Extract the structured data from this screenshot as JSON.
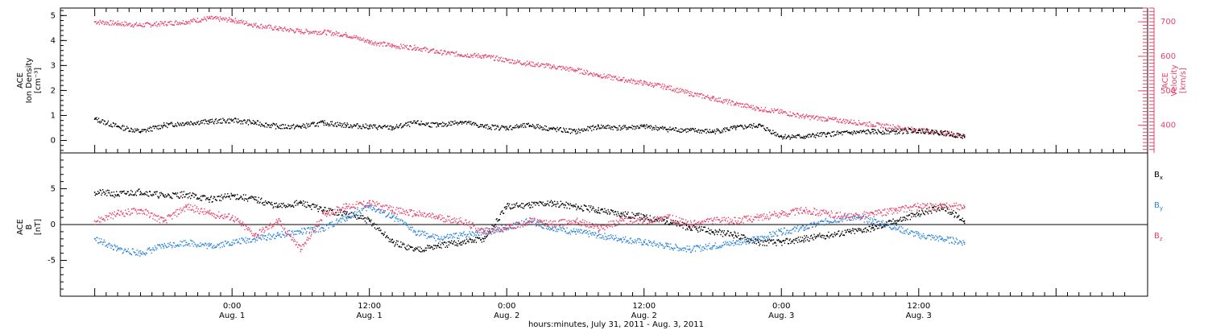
{
  "chart_data": [
    {
      "type": "scatter",
      "panel": "top",
      "xlabel": "hours:minutes, July 31, 2011 - Aug. 3, 2011",
      "left_axis": {
        "label_lines": [
          "ACE",
          "Ion Density",
          "[cm⁻³]"
        ],
        "ylim": [
          -0.5,
          5.3
        ],
        "ticks": [
          0,
          1,
          2,
          3,
          4,
          5
        ],
        "color": "#000000"
      },
      "right_axis": {
        "label_lines": [
          "ACE",
          "Velocity",
          "[km/s]"
        ],
        "ylim": [
          320,
          740
        ],
        "ticks": [
          400,
          500,
          600,
          700
        ],
        "color": "#e8426a"
      },
      "series": [
        {
          "color": "#000000",
          "axis": "left",
          "x_hours": [
            -12,
            -10,
            -8,
            -6,
            -4,
            -2,
            0,
            2,
            4,
            6,
            8,
            10,
            12,
            14,
            16,
            18,
            20,
            22,
            24,
            26,
            28,
            30,
            32,
            34,
            36,
            38,
            40,
            42,
            44,
            46,
            48,
            50,
            52,
            54,
            56,
            58,
            60,
            62,
            64
          ],
          "values": [
            0.85,
            0.55,
            0.35,
            0.6,
            0.7,
            0.75,
            0.8,
            0.7,
            0.55,
            0.55,
            0.7,
            0.6,
            0.55,
            0.5,
            0.7,
            0.6,
            0.75,
            0.55,
            0.5,
            0.6,
            0.45,
            0.35,
            0.55,
            0.5,
            0.55,
            0.45,
            0.4,
            0.35,
            0.5,
            0.6,
            0.15,
            0.15,
            0.25,
            0.3,
            0.35,
            0.35,
            0.4,
            0.3,
            0.15
          ]
        },
        {
          "color": "#e8426a",
          "axis": "right",
          "x_hours": [
            -12,
            -10,
            -8,
            -6,
            -4,
            -2,
            0,
            2,
            4,
            6,
            8,
            10,
            12,
            14,
            16,
            18,
            20,
            22,
            24,
            26,
            28,
            30,
            32,
            34,
            36,
            38,
            40,
            42,
            44,
            46,
            48,
            50,
            52,
            54,
            56,
            58,
            60,
            62,
            64
          ],
          "values": [
            700,
            695,
            690,
            695,
            700,
            710,
            705,
            690,
            680,
            672,
            670,
            662,
            642,
            630,
            625,
            612,
            605,
            600,
            588,
            578,
            570,
            560,
            545,
            533,
            522,
            510,
            492,
            478,
            462,
            448,
            438,
            425,
            418,
            410,
            402,
            394,
            385,
            378,
            368
          ]
        }
      ]
    },
    {
      "type": "scatter",
      "panel": "bottom",
      "left_axis": {
        "label_lines": [
          "ACE",
          "B",
          "[nT]"
        ],
        "ylim": [
          -10,
          10
        ],
        "ticks": [
          -5,
          0,
          5
        ]
      },
      "legend_position": "right",
      "series": [
        {
          "name": "B",
          "subscript": "x",
          "color": "#000000",
          "x_hours": [
            -12,
            -10,
            -8,
            -6,
            -4,
            -2,
            0,
            2,
            4,
            6,
            8,
            10,
            12,
            14,
            16,
            18,
            20,
            22,
            24,
            26,
            28,
            30,
            32,
            34,
            36,
            38,
            40,
            42,
            44,
            46,
            48,
            50,
            52,
            54,
            56,
            58,
            60,
            62,
            64
          ],
          "values": [
            4.5,
            4.2,
            4.6,
            4.0,
            4.2,
            3.5,
            4.0,
            3.5,
            2.5,
            3.0,
            2.0,
            1.5,
            0.5,
            -2.5,
            -3.5,
            -3.0,
            -2.5,
            -2.0,
            2.5,
            2.8,
            3.0,
            2.5,
            2.0,
            1.5,
            1.0,
            0.5,
            -0.5,
            -1.0,
            -1.5,
            -2.5,
            -2.5,
            -2.0,
            -1.5,
            -1.0,
            -0.5,
            0.5,
            1.5,
            2.5,
            0.5
          ]
        },
        {
          "name": "B",
          "subscript": "y",
          "color": "#2a84dc",
          "x_hours": [
            -12,
            -10,
            -8,
            -6,
            -4,
            -2,
            0,
            2,
            4,
            6,
            8,
            10,
            12,
            14,
            16,
            18,
            20,
            22,
            24,
            26,
            28,
            30,
            32,
            34,
            36,
            38,
            40,
            42,
            44,
            46,
            48,
            50,
            52,
            54,
            56,
            58,
            60,
            62,
            64
          ],
          "values": [
            -2.0,
            -3.5,
            -4.0,
            -3.0,
            -2.5,
            -3.0,
            -2.5,
            -2.0,
            -1.5,
            -1.0,
            -0.5,
            1.0,
            2.5,
            1.0,
            -1.0,
            -2.0,
            -1.5,
            -1.0,
            -0.5,
            0.5,
            -0.5,
            -1.0,
            -1.5,
            -2.0,
            -2.5,
            -3.0,
            -3.5,
            -3.0,
            -2.5,
            -2.0,
            -1.0,
            -0.5,
            0.5,
            1.0,
            0.5,
            -0.5,
            -1.5,
            -2.0,
            -2.5
          ]
        },
        {
          "name": "B",
          "subscript": "z",
          "color": "#e8426a",
          "x_hours": [
            -12,
            -10,
            -8,
            -6,
            -4,
            -2,
            0,
            2,
            4,
            6,
            8,
            10,
            12,
            14,
            16,
            18,
            20,
            22,
            24,
            26,
            28,
            30,
            32,
            34,
            36,
            38,
            40,
            42,
            44,
            46,
            48,
            50,
            52,
            54,
            56,
            58,
            60,
            62,
            64
          ],
          "values": [
            0.5,
            1.5,
            2.0,
            0.5,
            2.5,
            1.5,
            1.0,
            -1.5,
            0.5,
            -3.5,
            1.5,
            2.5,
            3.0,
            2.0,
            1.5,
            1.0,
            0.5,
            -1.0,
            -0.5,
            0.5,
            0.0,
            0.5,
            -0.5,
            0.5,
            0.5,
            1.0,
            0.0,
            0.5,
            0.5,
            1.0,
            1.5,
            2.0,
            1.5,
            1.0,
            1.5,
            2.0,
            2.5,
            2.5,
            2.5
          ]
        }
      ]
    }
  ],
  "x_axis": {
    "xlim_hours": [
      -15,
      80
    ],
    "major_ticks": [
      {
        "hour": 0,
        "time": "0:00",
        "date": "Aug. 1"
      },
      {
        "hour": 12,
        "time": "12:00",
        "date": "Aug. 1"
      },
      {
        "hour": 24,
        "time": "0:00",
        "date": "Aug. 2"
      },
      {
        "hour": 36,
        "time": "12:00",
        "date": "Aug. 2"
      },
      {
        "hour": 48,
        "time": "0:00",
        "date": "Aug. 3"
      },
      {
        "hour": 60,
        "time": "12:00",
        "date": "Aug. 3"
      }
    ],
    "label": "hours:minutes, July 31, 2011 - Aug. 3, 2011"
  }
}
